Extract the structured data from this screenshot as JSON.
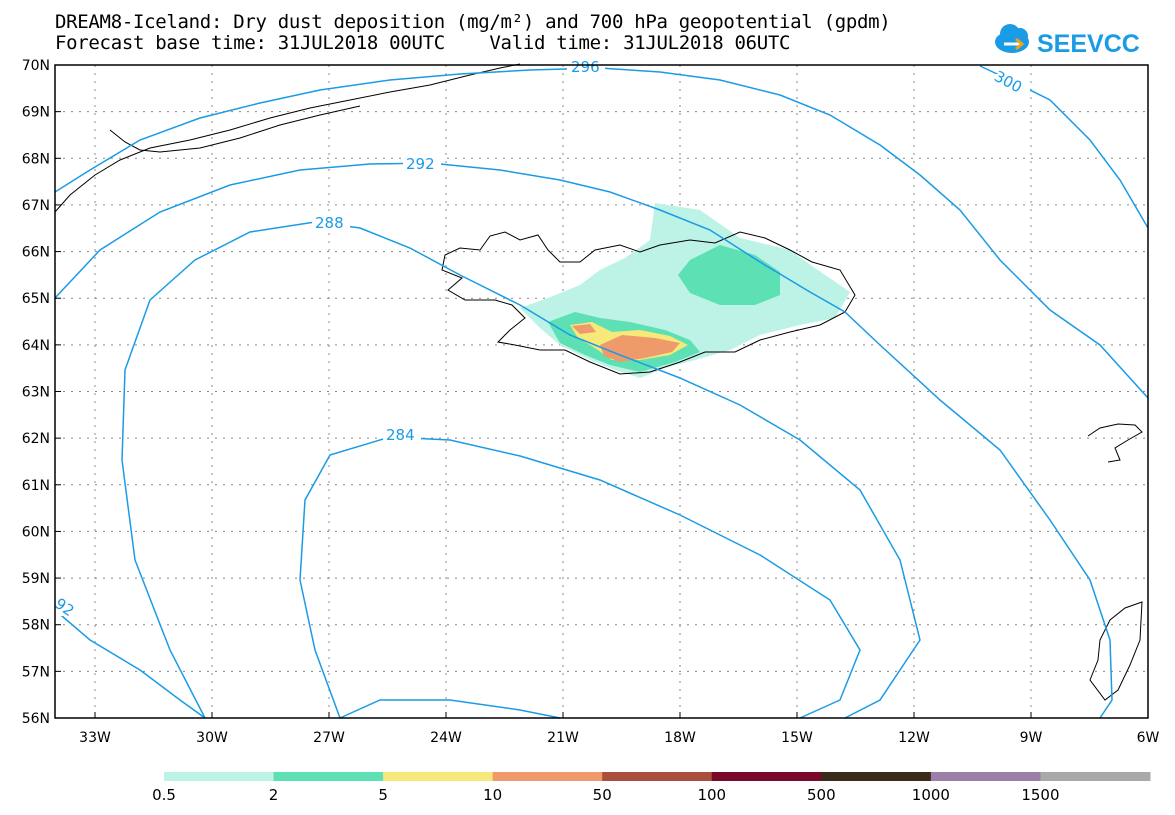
{
  "title": {
    "line1": "DREAM8-Iceland: Dry dust deposition (mg/m²) and 700 hPa geopotential (gpdm)",
    "line2": "Forecast base time: 31JUL2018 00UTC    Valid time: 31JUL2018 06UTC"
  },
  "logo": {
    "text": "SEEVCCC",
    "icon": "cloud-logo-icon",
    "color": "#1a9be6"
  },
  "axes": {
    "lat_labels": [
      "70N",
      "69N",
      "68N",
      "67N",
      "66N",
      "65N",
      "64N",
      "63N",
      "62N",
      "61N",
      "60N",
      "59N",
      "58N",
      "57N",
      "56N"
    ],
    "lon_labels": [
      "33W",
      "30W",
      "27W",
      "24W",
      "21W",
      "18W",
      "15W",
      "12W",
      "9W",
      "6W"
    ]
  },
  "contours": {
    "color": "#1a9be6",
    "labels": [
      "296",
      "300",
      "292",
      "288",
      "284",
      "92"
    ]
  },
  "colorbar": {
    "labels": [
      "0.5",
      "2",
      "5",
      "10",
      "50",
      "100",
      "500",
      "1000",
      "1500"
    ],
    "colors": [
      "#bdf2e6",
      "#5de0b3",
      "#f7e87a",
      "#ef9a6b",
      "#a8503c",
      "#7a0a2a",
      "#3a2a1a",
      "#9b7fa6",
      "#a9a9a9"
    ]
  }
}
